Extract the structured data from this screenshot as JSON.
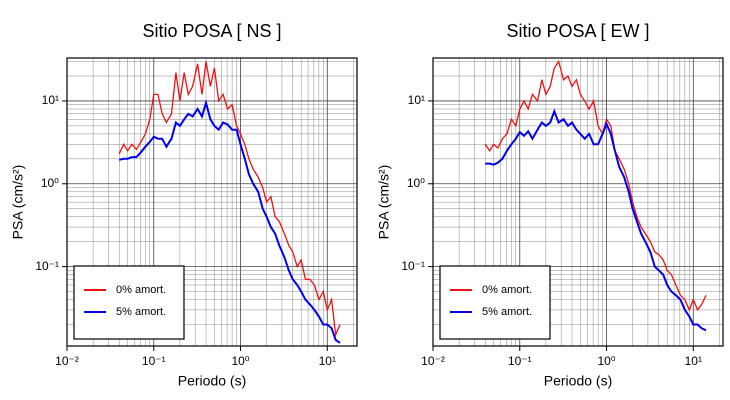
{
  "chart_data": [
    {
      "type": "line",
      "title": "Sitio POSA [ NS ]",
      "xlabel": "Periodo (s)",
      "ylabel": "PSA (cm/s²)",
      "x": [
        0.04,
        0.045,
        0.05,
        0.056,
        0.063,
        0.071,
        0.08,
        0.09,
        0.1,
        0.112,
        0.125,
        0.14,
        0.16,
        0.18,
        0.2,
        0.224,
        0.25,
        0.28,
        0.32,
        0.36,
        0.4,
        0.45,
        0.5,
        0.56,
        0.63,
        0.71,
        0.8,
        0.9,
        1.0,
        1.12,
        1.25,
        1.4,
        1.6,
        1.8,
        2.0,
        2.24,
        2.5,
        2.8,
        3.2,
        3.6,
        4.0,
        4.5,
        5.0,
        5.6,
        6.3,
        7.1,
        8.0,
        9.0,
        10,
        11.2,
        12.5,
        14
      ],
      "series": [
        {
          "name": "0% amort.",
          "color": "#ee1111",
          "values": [
            2.3,
            3,
            2.5,
            3,
            2.6,
            3.2,
            4,
            6,
            12,
            12,
            7,
            5.5,
            7,
            22,
            10,
            22,
            12,
            15,
            28,
            12,
            30,
            15,
            25,
            10,
            12,
            8,
            9,
            5,
            4,
            3,
            2,
            1.5,
            1.2,
            0.9,
            0.6,
            0.7,
            0.4,
            0.35,
            0.25,
            0.18,
            0.15,
            0.1,
            0.12,
            0.07,
            0.07,
            0.06,
            0.04,
            0.05,
            0.03,
            0.04,
            0.015,
            0.02
          ]
        },
        {
          "name": "5% amort.",
          "color": "#0000ee",
          "values": [
            1.95,
            2,
            2,
            2.1,
            2.1,
            2.4,
            2.8,
            3.2,
            3.7,
            3.5,
            3.5,
            2.8,
            3.5,
            5.5,
            5,
            6,
            7,
            6.5,
            8,
            6.5,
            9.5,
            6,
            5,
            4.5,
            5.5,
            5.2,
            4.5,
            4.5,
            3,
            2,
            1.3,
            1,
            0.8,
            0.5,
            0.4,
            0.3,
            0.25,
            0.18,
            0.13,
            0.09,
            0.07,
            0.06,
            0.05,
            0.04,
            0.035,
            0.03,
            0.025,
            0.02,
            0.02,
            0.018,
            0.013,
            0.012
          ]
        }
      ],
      "xlim": [
        0.01,
        22
      ],
      "ylim": [
        0.011,
        33
      ],
      "xscale": "log",
      "yscale": "log",
      "grid": true,
      "legend": "lower left",
      "xticks": [
        {
          "value": 0.01,
          "label": "10⁻²"
        },
        {
          "value": 0.1,
          "label": "10⁻¹"
        },
        {
          "value": 1,
          "label": "10⁰"
        },
        {
          "value": 10,
          "label": "10¹"
        }
      ],
      "yticks": [
        {
          "value": 0.1,
          "label": "10⁻¹"
        },
        {
          "value": 1,
          "label": "10⁰"
        },
        {
          "value": 10,
          "label": "10¹"
        }
      ]
    },
    {
      "type": "line",
      "title": "Sitio POSA [ EW ]",
      "xlabel": "Periodo (s)",
      "ylabel": "PSA (cm/s²)",
      "x": [
        0.04,
        0.045,
        0.05,
        0.056,
        0.063,
        0.071,
        0.08,
        0.09,
        0.1,
        0.112,
        0.125,
        0.14,
        0.16,
        0.18,
        0.2,
        0.224,
        0.25,
        0.28,
        0.32,
        0.36,
        0.4,
        0.45,
        0.5,
        0.56,
        0.63,
        0.71,
        0.8,
        0.9,
        1.0,
        1.12,
        1.25,
        1.4,
        1.6,
        1.8,
        2.0,
        2.24,
        2.5,
        2.8,
        3.2,
        3.6,
        4.0,
        4.5,
        5.0,
        5.6,
        6.3,
        7.1,
        8.0,
        9.0,
        10,
        11.2,
        12.5,
        14
      ],
      "series": [
        {
          "name": "0% amort.",
          "color": "#ee1111",
          "values": [
            3,
            2.5,
            3,
            2.7,
            3.5,
            4,
            6,
            5,
            8,
            10,
            8,
            12,
            10,
            18,
            12,
            15,
            25,
            30,
            18,
            20,
            15,
            18,
            12,
            10,
            8,
            10,
            5,
            4,
            6,
            5,
            2.5,
            2,
            1.5,
            1,
            0.6,
            0.4,
            0.3,
            0.25,
            0.2,
            0.15,
            0.14,
            0.12,
            0.09,
            0.08,
            0.06,
            0.045,
            0.04,
            0.03,
            0.04,
            0.03,
            0.035,
            0.045
          ]
        },
        {
          "name": "5% amort.",
          "color": "#0000ee",
          "values": [
            1.75,
            1.75,
            1.7,
            1.8,
            2,
            2.5,
            3,
            3.5,
            4.2,
            3.8,
            4.3,
            3.5,
            4.5,
            5.5,
            5,
            5.5,
            7.5,
            5.5,
            6,
            5,
            5.5,
            4.5,
            4,
            3.5,
            4,
            3,
            3,
            4,
            5.3,
            4,
            2.5,
            1.6,
            1.2,
            0.8,
            0.5,
            0.35,
            0.25,
            0.2,
            0.15,
            0.1,
            0.09,
            0.08,
            0.06,
            0.05,
            0.045,
            0.04,
            0.03,
            0.025,
            0.02,
            0.02,
            0.018,
            0.017
          ]
        }
      ],
      "xlim": [
        0.01,
        22
      ],
      "ylim": [
        0.011,
        33
      ],
      "xscale": "log",
      "yscale": "log",
      "grid": true,
      "legend": "lower left",
      "xticks": [
        {
          "value": 0.01,
          "label": "10⁻²"
        },
        {
          "value": 0.1,
          "label": "10⁻¹"
        },
        {
          "value": 1,
          "label": "10⁰"
        },
        {
          "value": 10,
          "label": "10¹"
        }
      ],
      "yticks": [
        {
          "value": 0.1,
          "label": "10⁻¹"
        },
        {
          "value": 1,
          "label": "10⁰"
        },
        {
          "value": 10,
          "label": "10¹"
        }
      ]
    }
  ]
}
